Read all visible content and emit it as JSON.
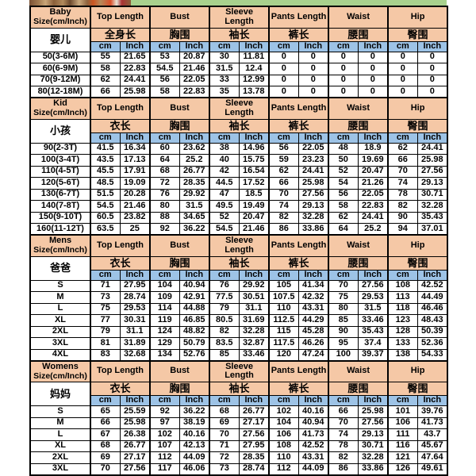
{
  "colors": {
    "header_peach": "#F5C8A6",
    "unit_blue": "#9DC3E6",
    "banner_green": "#A8D18D",
    "border_black": "#000000"
  },
  "units": {
    "cm": "cm",
    "inch": "Inch"
  },
  "sections": [
    {
      "id": "baby",
      "title_line1": "Baby",
      "title_line2": "Size(cm/Inch)",
      "title_cn": "婴儿",
      "groups": [
        {
          "en": "Top Length",
          "cn": "全身长"
        },
        {
          "en": "Bust",
          "cn": "胸围"
        },
        {
          "en": "Sleeve Length",
          "cn": "袖长"
        },
        {
          "en": "Pants Length",
          "cn": "裤长"
        },
        {
          "en": "Waist",
          "cn": "腰围"
        },
        {
          "en": "Hip",
          "cn": "臀围"
        }
      ],
      "rows": [
        {
          "label": "50(3-6M)",
          "values": [
            "55",
            "21.65",
            "53",
            "20.87",
            "30",
            "11.81",
            "0",
            "0",
            "0",
            "0",
            "0",
            "0"
          ]
        },
        {
          "label": "60(6-9M)",
          "values": [
            "58",
            "22.83",
            "54.5",
            "21.46",
            "31.5",
            "12.4",
            "0",
            "0",
            "0",
            "0",
            "0",
            "0"
          ]
        },
        {
          "label": "70(9-12M)",
          "values": [
            "62",
            "24.41",
            "56",
            "22.05",
            "33",
            "12.99",
            "0",
            "0",
            "0",
            "0",
            "0",
            "0"
          ]
        },
        {
          "label": "80(12-18M)",
          "values": [
            "66",
            "25.98",
            "58",
            "22.83",
            "35",
            "13.78",
            "0",
            "0",
            "0",
            "0",
            "0",
            "0"
          ]
        }
      ]
    },
    {
      "id": "kid",
      "title_line1": "Kid",
      "title_line2": "Size(cm/Inch)",
      "title_cn": "小孩",
      "groups": [
        {
          "en": "Top Length",
          "cn": "衣长"
        },
        {
          "en": "Bust",
          "cn": "胸围"
        },
        {
          "en": "Sleeve Length",
          "cn": "袖长"
        },
        {
          "en": "Pants Length",
          "cn": "裤长"
        },
        {
          "en": "Waist",
          "cn": "腰围"
        },
        {
          "en": "Hip",
          "cn": "臀围"
        }
      ],
      "rows": [
        {
          "label": "90(2-3T)",
          "values": [
            "41.5",
            "16.34",
            "60",
            "23.62",
            "38",
            "14.96",
            "56",
            "22.05",
            "48",
            "18.9",
            "62",
            "24.41"
          ]
        },
        {
          "label": "100(3-4T)",
          "values": [
            "43.5",
            "17.13",
            "64",
            "25.2",
            "40",
            "15.75",
            "59",
            "23.23",
            "50",
            "19.69",
            "66",
            "25.98"
          ]
        },
        {
          "label": "110(4-5T)",
          "values": [
            "45.5",
            "17.91",
            "68",
            "26.77",
            "42",
            "16.54",
            "62",
            "24.41",
            "52",
            "20.47",
            "70",
            "27.56"
          ]
        },
        {
          "label": "120(5-6T)",
          "values": [
            "48.5",
            "19.09",
            "72",
            "28.35",
            "44.5",
            "17.52",
            "66",
            "25.98",
            "54",
            "21.26",
            "74",
            "29.13"
          ]
        },
        {
          "label": "130(6-7T)",
          "values": [
            "51.5",
            "20.28",
            "76",
            "29.92",
            "47",
            "18.5",
            "70",
            "27.56",
            "56",
            "22.05",
            "78",
            "30.71"
          ]
        },
        {
          "label": "140(7-8T)",
          "values": [
            "54.5",
            "21.46",
            "80",
            "31.5",
            "49.5",
            "19.49",
            "74",
            "29.13",
            "58",
            "22.83",
            "82",
            "32.28"
          ]
        },
        {
          "label": "150(9-10T)",
          "values": [
            "60.5",
            "23.82",
            "88",
            "34.65",
            "52",
            "20.47",
            "82",
            "32.28",
            "62",
            "24.41",
            "90",
            "35.43"
          ]
        },
        {
          "label": "160(11-12T)",
          "values": [
            "63.5",
            "25",
            "92",
            "36.22",
            "54.5",
            "21.46",
            "86",
            "33.86",
            "64",
            "25.2",
            "94",
            "37.01"
          ]
        }
      ]
    },
    {
      "id": "mens",
      "title_line1": "Mens",
      "title_line2": "Size(cm/Inch)",
      "title_cn": "爸爸",
      "groups": [
        {
          "en": "Top Length",
          "cn": "衣长"
        },
        {
          "en": "Bust",
          "cn": "胸围"
        },
        {
          "en": "Sleeve Length",
          "cn": "袖长"
        },
        {
          "en": "Pants Length",
          "cn": "裤长"
        },
        {
          "en": "Waist",
          "cn": "腰围"
        },
        {
          "en": "Hip",
          "cn": "臀围"
        }
      ],
      "rows": [
        {
          "label": "S",
          "values": [
            "71",
            "27.95",
            "104",
            "40.94",
            "76",
            "29.92",
            "105",
            "41.34",
            "70",
            "27.56",
            "108",
            "42.52"
          ]
        },
        {
          "label": "M",
          "values": [
            "73",
            "28.74",
            "109",
            "42.91",
            "77.5",
            "30.51",
            "107.5",
            "42.32",
            "75",
            "29.53",
            "113",
            "44.49"
          ]
        },
        {
          "label": "L",
          "values": [
            "75",
            "29.53",
            "114",
            "44.88",
            "79",
            "31.1",
            "110",
            "43.31",
            "80",
            "31.5",
            "118",
            "46.46"
          ]
        },
        {
          "label": "XL",
          "values": [
            "77",
            "30.31",
            "119",
            "46.85",
            "80.5",
            "31.69",
            "112.5",
            "44.29",
            "85",
            "33.46",
            "123",
            "48.43"
          ]
        },
        {
          "label": "2XL",
          "values": [
            "79",
            "31.1",
            "124",
            "48.82",
            "82",
            "32.28",
            "115",
            "45.28",
            "90",
            "35.43",
            "128",
            "50.39"
          ]
        },
        {
          "label": "3XL",
          "values": [
            "81",
            "31.89",
            "129",
            "50.79",
            "83.5",
            "32.87",
            "117.5",
            "46.26",
            "95",
            "37.4",
            "133",
            "52.36"
          ]
        },
        {
          "label": "4XL",
          "values": [
            "83",
            "32.68",
            "134",
            "52.76",
            "85",
            "33.46",
            "120",
            "47.24",
            "100",
            "39.37",
            "138",
            "54.33"
          ]
        }
      ]
    },
    {
      "id": "womens",
      "title_line1": "Womens",
      "title_line2": "Size(cm/Inch)",
      "title_cn": "妈妈",
      "groups": [
        {
          "en": "Top Length",
          "cn": "衣长"
        },
        {
          "en": "Bust",
          "cn": "胸围"
        },
        {
          "en": "Sleeve Length",
          "cn": "袖长"
        },
        {
          "en": "Pants Length",
          "cn": "裤长"
        },
        {
          "en": "Waist",
          "cn": "腰围"
        },
        {
          "en": "Hip",
          "cn": "臀围"
        }
      ],
      "rows": [
        {
          "label": "S",
          "values": [
            "65",
            "25.59",
            "92",
            "36.22",
            "68",
            "26.77",
            "102",
            "40.16",
            "66",
            "25.98",
            "101",
            "39.76"
          ]
        },
        {
          "label": "M",
          "values": [
            "66",
            "25.98",
            "97",
            "38.19",
            "69",
            "27.17",
            "104",
            "40.94",
            "70",
            "27.56",
            "106",
            "41.73"
          ]
        },
        {
          "label": "L",
          "values": [
            "67",
            "26.38",
            "102",
            "40.16",
            "70",
            "27.56",
            "106",
            "41.73",
            "74",
            "29.13",
            "111",
            "43.7"
          ]
        },
        {
          "label": "XL",
          "values": [
            "68",
            "26.77",
            "107",
            "42.13",
            "71",
            "27.95",
            "108",
            "42.52",
            "78",
            "30.71",
            "116",
            "45.67"
          ]
        },
        {
          "label": "2XL",
          "values": [
            "69",
            "27.17",
            "112",
            "44.09",
            "72",
            "28.35",
            "110",
            "43.31",
            "82",
            "32.28",
            "121",
            "47.64"
          ]
        },
        {
          "label": "3XL",
          "values": [
            "70",
            "27.56",
            "117",
            "46.06",
            "73",
            "28.74",
            "112",
            "44.09",
            "86",
            "33.86",
            "126",
            "49.61"
          ]
        }
      ]
    }
  ]
}
